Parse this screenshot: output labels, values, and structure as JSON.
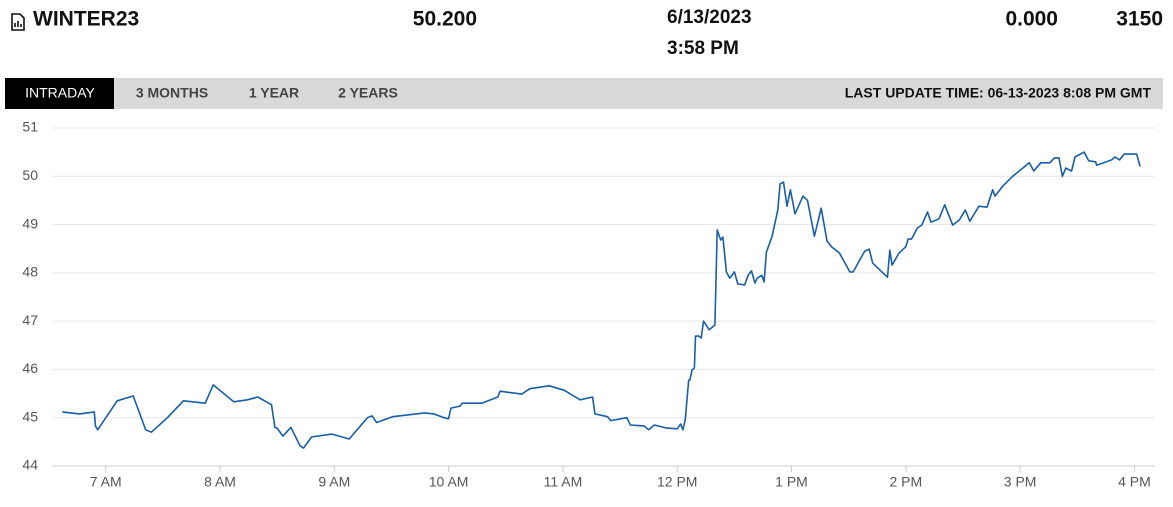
{
  "header": {
    "symbol": "WINTER23",
    "price": "50.200",
    "date": "6/13/2023",
    "time": "3:58 PM",
    "change": "0.000",
    "volume": "3150"
  },
  "tabs": [
    "INTRADAY",
    "3 MONTHS",
    "1 YEAR",
    "2 YEARS"
  ],
  "last_update": "LAST UPDATE TIME: 06-13-2023 8:08 PM GMT",
  "chart_data": {
    "type": "line",
    "color": "#1a5fa3",
    "grid": true,
    "xlim": [
      6.53,
      16.18
    ],
    "ylim": [
      44,
      51
    ],
    "yticks": [
      44,
      45,
      46,
      47,
      48,
      49,
      50,
      51
    ],
    "xticks": [
      {
        "value": 7,
        "label": "7 AM"
      },
      {
        "value": 8,
        "label": "8 AM"
      },
      {
        "value": 9,
        "label": "9 AM"
      },
      {
        "value": 10,
        "label": "10 AM"
      },
      {
        "value": 11,
        "label": "11 AM"
      },
      {
        "value": 12,
        "label": "12 PM"
      },
      {
        "value": 13,
        "label": "1 PM"
      },
      {
        "value": 14,
        "label": "2 PM"
      },
      {
        "value": 15,
        "label": "3 PM"
      },
      {
        "value": 16,
        "label": "4 PM"
      }
    ],
    "x": [
      6.62,
      6.77,
      6.9,
      6.91,
      6.93,
      7.1,
      7.24,
      7.35,
      7.4,
      7.54,
      7.68,
      7.87,
      7.94,
      8.12,
      8.24,
      8.33,
      8.45,
      8.48,
      8.5,
      8.55,
      8.62,
      8.7,
      8.73,
      8.8,
      8.98,
      9.13,
      9.29,
      9.33,
      9.37,
      9.51,
      9.79,
      9.87,
      9.96,
      10.0,
      10.02,
      10.1,
      10.12,
      10.29,
      10.43,
      10.45,
      10.64,
      10.71,
      10.88,
      11.01,
      11.15,
      11.26,
      11.28,
      11.39,
      11.42,
      11.56,
      11.59,
      11.71,
      11.75,
      11.8,
      11.9,
      12.0,
      12.03,
      12.05,
      12.07,
      12.1,
      12.11,
      12.13,
      12.15,
      12.16,
      12.19,
      12.21,
      12.23,
      12.28,
      12.33,
      12.35,
      12.38,
      12.4,
      12.43,
      12.46,
      12.5,
      12.53,
      12.59,
      12.62,
      12.65,
      12.68,
      12.7,
      12.74,
      12.76,
      12.78,
      12.83,
      12.88,
      12.9,
      12.93,
      12.96,
      12.99,
      13.03,
      13.1,
      13.14,
      13.2,
      13.26,
      13.31,
      13.35,
      13.42,
      13.51,
      13.54,
      13.64,
      13.68,
      13.71,
      13.84,
      13.86,
      13.88,
      13.94,
      14.0,
      14.02,
      14.05,
      14.1,
      14.14,
      14.19,
      14.22,
      14.29,
      14.34,
      14.41,
      14.47,
      14.52,
      14.56,
      14.64,
      14.71,
      14.76,
      14.78,
      14.85,
      14.93,
      15.08,
      15.12,
      15.18,
      15.26,
      15.3,
      15.34,
      15.37,
      15.4,
      15.45,
      15.48,
      15.56,
      15.6,
      15.66,
      15.67,
      15.8,
      15.83,
      15.87,
      15.91,
      16.02,
      16.05
    ],
    "values": [
      45.12,
      45.08,
      45.12,
      44.83,
      44.75,
      45.35,
      45.45,
      44.75,
      44.7,
      45.0,
      45.35,
      45.3,
      45.68,
      45.33,
      45.37,
      45.43,
      45.27,
      44.8,
      44.78,
      44.62,
      44.8,
      44.42,
      44.37,
      44.6,
      44.66,
      44.56,
      45.0,
      45.04,
      44.9,
      45.02,
      45.1,
      45.08,
      45.0,
      44.98,
      45.2,
      45.24,
      45.3,
      45.3,
      45.43,
      45.55,
      45.49,
      45.6,
      45.66,
      45.57,
      45.37,
      45.43,
      45.08,
      45.02,
      44.94,
      45.0,
      44.85,
      44.83,
      44.75,
      44.85,
      44.79,
      44.77,
      44.87,
      44.75,
      44.95,
      45.78,
      45.78,
      45.99,
      46.03,
      46.69,
      46.69,
      46.65,
      47.0,
      46.82,
      46.92,
      48.89,
      48.68,
      48.74,
      48.02,
      47.89,
      48.02,
      47.77,
      47.75,
      47.95,
      48.04,
      47.79,
      47.89,
      47.95,
      47.81,
      48.43,
      48.76,
      49.3,
      49.84,
      49.88,
      49.38,
      49.72,
      49.22,
      49.59,
      49.5,
      48.76,
      49.34,
      48.66,
      48.54,
      48.41,
      48.02,
      48.02,
      48.45,
      48.49,
      48.2,
      47.91,
      48.47,
      48.16,
      48.41,
      48.54,
      48.7,
      48.7,
      48.93,
      48.99,
      49.26,
      49.05,
      49.12,
      49.41,
      48.99,
      49.1,
      49.3,
      49.07,
      49.38,
      49.36,
      49.72,
      49.59,
      49.8,
      49.99,
      50.28,
      50.11,
      50.28,
      50.28,
      50.38,
      50.38,
      50.0,
      50.17,
      50.11,
      50.4,
      50.5,
      50.32,
      50.3,
      50.23,
      50.34,
      50.4,
      50.34,
      50.46,
      50.46,
      50.2
    ]
  }
}
